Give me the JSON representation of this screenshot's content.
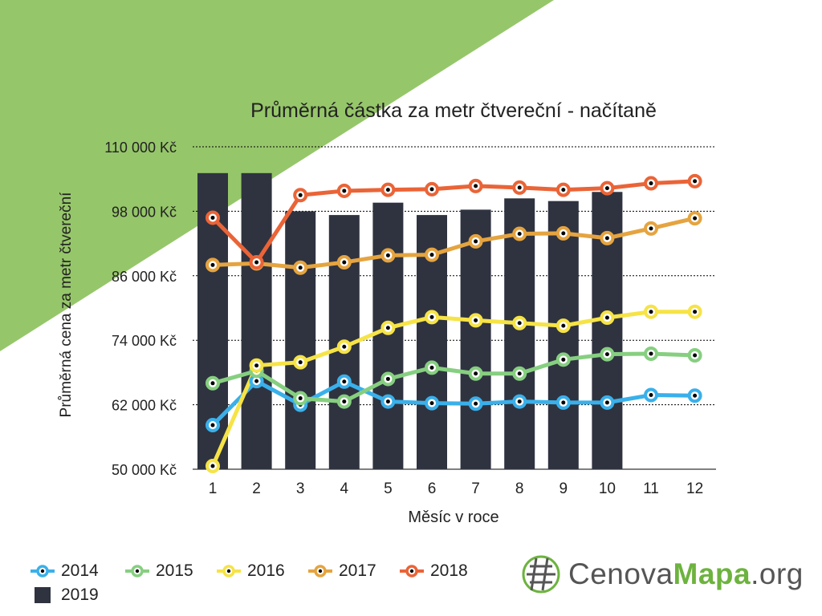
{
  "chart_data": {
    "type": "line",
    "title": "Průměrná částka za metr čtvereční - načítaně",
    "xlabel": "Měsíc v roce",
    "ylabel": "Průměrná cena za metr čtvereční",
    "categories": [
      "1",
      "2",
      "3",
      "4",
      "5",
      "6",
      "7",
      "8",
      "9",
      "10",
      "11",
      "12"
    ],
    "ylim": [
      50000,
      110000
    ],
    "yticks": [
      50000,
      62000,
      74000,
      86000,
      98000,
      110000
    ],
    "ytick_labels": [
      "50 000 Kč",
      "62 000 Kč",
      "74 000 Kč",
      "86 000 Kč",
      "98 000 Kč",
      "110 000 Kč"
    ],
    "grid": true,
    "legend_position": "bottom-left",
    "bar_series": {
      "name": "2019",
      "color": "#2f3340",
      "values": [
        105100,
        105100,
        98000,
        97300,
        99600,
        97300,
        98300,
        100400,
        99900,
        101600,
        null,
        null
      ]
    },
    "series": [
      {
        "name": "2014",
        "color": "#3ab0ea",
        "values": [
          58200,
          66400,
          62000,
          66300,
          62600,
          62300,
          62200,
          62600,
          62400,
          62400,
          63800,
          63700
        ]
      },
      {
        "name": "2015",
        "color": "#86cf80",
        "values": [
          66000,
          68300,
          63200,
          62600,
          66800,
          68900,
          67800,
          67800,
          70400,
          71400,
          71500,
          71200
        ]
      },
      {
        "name": "2016",
        "color": "#f6e346",
        "values": [
          50600,
          69300,
          69900,
          72800,
          76300,
          78300,
          77700,
          77200,
          76700,
          78200,
          79300,
          79300
        ]
      },
      {
        "name": "2017",
        "color": "#e5a440",
        "values": [
          88000,
          88300,
          87500,
          88500,
          89800,
          89900,
          92400,
          93800,
          93900,
          93000,
          94800,
          96700
        ]
      },
      {
        "name": "2018",
        "color": "#ea6437",
        "values": [
          96800,
          88500,
          101000,
          101800,
          102000,
          102100,
          102700,
          102400,
          102000,
          102300,
          103200,
          103600
        ]
      }
    ]
  },
  "colors": {
    "background_triangle": "#96c66a",
    "grid": "#000000",
    "marker_fill": "#000000"
  },
  "logo": {
    "text_a": "Cenova",
    "text_b": "Mapa",
    "text_c": ".org",
    "icon": "globe-icon"
  }
}
